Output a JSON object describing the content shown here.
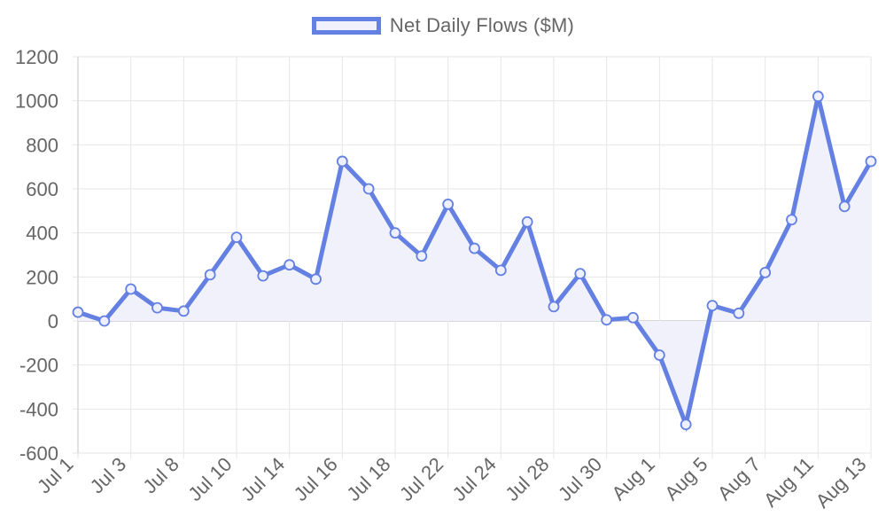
{
  "legend": {
    "label": "Net Daily Flows ($M)"
  },
  "colors": {
    "line": "#6380e2",
    "fill": "#f1f1fc",
    "grid": "#e6e6e6",
    "zero_line": "#cccccc",
    "tick_text": "#666666",
    "point_fill": "#eef0ff"
  },
  "chart_data": {
    "type": "area",
    "title": "",
    "xlabel": "",
    "ylabel": "",
    "ylim": [
      -600,
      1200
    ],
    "yticks": [
      1200,
      1000,
      800,
      600,
      400,
      200,
      0,
      -200,
      -400,
      -600
    ],
    "grid": true,
    "legend_position": "top-center",
    "x_tick_labels": [
      "Jul 1",
      "Jul 3",
      "Jul 8",
      "Jul 10",
      "Jul 14",
      "Jul 16",
      "Jul 18",
      "Jul 22",
      "Jul 24",
      "Jul 28",
      "Jul 30",
      "Aug 1",
      "Aug 5",
      "Aug 7",
      "Aug 11",
      "Aug 13"
    ],
    "series": [
      {
        "name": "Net Daily Flows ($M)",
        "values": [
          40,
          0,
          145,
          60,
          45,
          210,
          380,
          205,
          255,
          190,
          725,
          600,
          400,
          295,
          530,
          330,
          230,
          450,
          65,
          215,
          5,
          15,
          -155,
          -470,
          70,
          35,
          220,
          460,
          1020,
          520,
          725
        ]
      }
    ]
  }
}
